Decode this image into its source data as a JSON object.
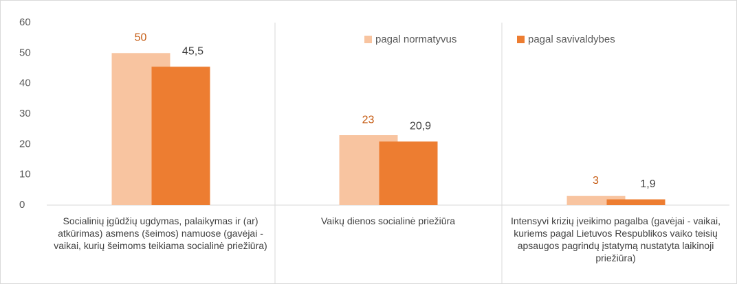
{
  "chart_data": {
    "type": "bar",
    "categories": [
      "Socialinių įgūdžių ugdymas, palaikymas ir (ar) atkūrimas) asmens (šeimos) namuose (gavėjai - vaikai, kurių šeimoms teikiama socialinė priežiūra)",
      "Vaikų dienos socialinė priežiūra",
      "Intensyvi krizių įveikimo pagalba (gavėjai - vaikai, kuriems pagal Lietuvos Respublikos vaiko teisių apsaugos pagrindų įstatymą nustatyta laikinoji priežiūra)"
    ],
    "series": [
      {
        "name": "pagal normatyvus",
        "color": "#f8c4a0",
        "label_color": "#c55a11",
        "values": [
          50,
          23,
          3
        ]
      },
      {
        "name": "pagal savivaldybes",
        "color": "#ed7d31",
        "label_color": "#404040",
        "values": [
          45.5,
          20.9,
          1.9
        ],
        "value_labels": [
          "45,5",
          "20,9",
          "1,9"
        ]
      }
    ],
    "ylim": [
      0,
      60
    ],
    "yticks": [
      0,
      10,
      20,
      30,
      40,
      50,
      60
    ],
    "grid": false,
    "legend": "top-right"
  }
}
